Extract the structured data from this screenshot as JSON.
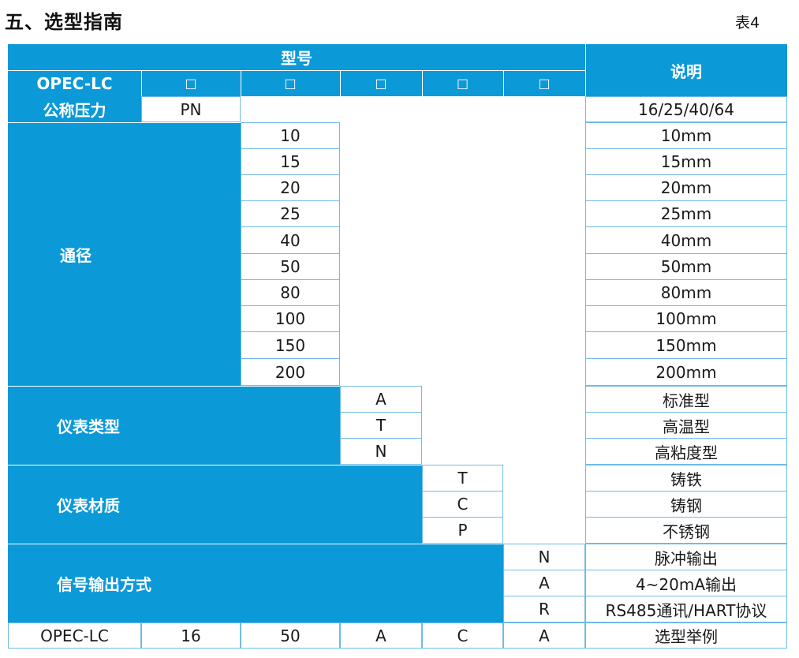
{
  "title": "五、选型指南",
  "table_label": "表4",
  "header": {
    "model_label": "型号",
    "desc_label": "说明",
    "model_code": "OPEC-LC",
    "slots": [
      "□",
      "□",
      "□",
      "□",
      "□"
    ]
  },
  "pressure": {
    "label": "公称压力",
    "code": "PN",
    "desc": "16/25/40/64"
  },
  "diameter": {
    "label": "通径",
    "codes": [
      "10",
      "15",
      "20",
      "25",
      "40",
      "50",
      "80",
      "100",
      "150",
      "200"
    ],
    "descs": [
      "10mm",
      "15mm",
      "20mm",
      "25mm",
      "40mm",
      "50mm",
      "80mm",
      "100mm",
      "150mm",
      "200mm"
    ]
  },
  "meter_type": {
    "label": "仪表类型",
    "codes": [
      "A",
      "T",
      "N"
    ],
    "descs": [
      "标准型",
      "高温型",
      "高粘度型"
    ]
  },
  "meter_material": {
    "label": "仪表材质",
    "codes": [
      "T",
      "C",
      "P"
    ],
    "descs": [
      "铸铁",
      "铸钢",
      "不锈钢"
    ]
  },
  "signal_output": {
    "label": "信号输出方式",
    "codes": [
      "N",
      "A",
      "R"
    ],
    "descs": [
      "脉冲输出",
      "4~20mA输出",
      "RS485通讯/HART协议"
    ]
  },
  "example": {
    "values": [
      "OPEC-LC",
      "16",
      "50",
      "A",
      "C",
      "A"
    ],
    "desc": "选型举例"
  },
  "colors": {
    "header_blue": "#0c99d8",
    "border_blue": "#6fbbe3"
  }
}
